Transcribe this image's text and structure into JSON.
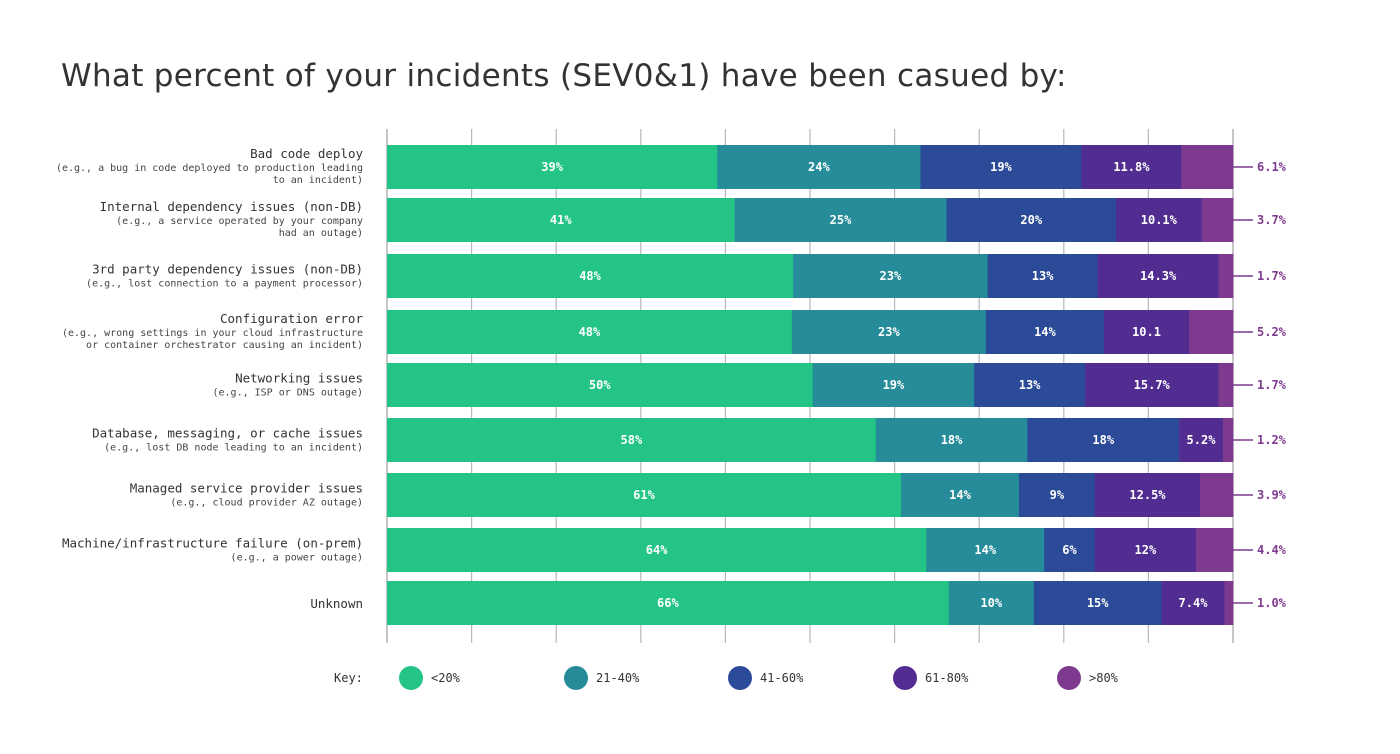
{
  "chart_data": {
    "type": "bar",
    "orientation": "horizontal",
    "stacked": true,
    "normalized": true,
    "title": "What percent of your incidents (SEV0&1) have been casued by:",
    "xlabel": "",
    "ylabel": "",
    "xlim": [
      0,
      100
    ],
    "grid": true,
    "legend": {
      "title": "Key:",
      "placement": "bottom",
      "entries": [
        {
          "label": "<20%",
          "color": "#23C485"
        },
        {
          "label": "21-40%",
          "color": "#268C9A"
        },
        {
          "label": "41-60%",
          "color": "#2B4A97"
        },
        {
          "label": "61-80%",
          "color": "#522D91"
        },
        {
          "label": ">80%",
          "color": "#7E3A8F"
        }
      ]
    },
    "categories": [
      {
        "name": "Bad code deploy",
        "sub": [
          "(e.g., a bug in code deployed to production leading",
          "to an incident)"
        ]
      },
      {
        "name": "Internal dependency issues (non-DB)",
        "sub": [
          "(e.g., a service operated by your company",
          "had an outage)"
        ]
      },
      {
        "name": "3rd party dependency issues  (non-DB)",
        "sub": [
          "(e.g., lost connection to a payment processor)"
        ]
      },
      {
        "name": "Configuration error",
        "sub": [
          "(e.g., wrong settings in your cloud infrastructure",
          "or container orchestrator causing an incident)"
        ]
      },
      {
        "name": "Networking issues",
        "sub": [
          "(e.g., ISP or DNS outage)"
        ]
      },
      {
        "name": "Database, messaging, or cache issues",
        "sub": [
          "(e.g., lost DB node leading to an incident)"
        ]
      },
      {
        "name": "Managed service provider issues",
        "sub": [
          "(e.g., cloud provider AZ outage)"
        ]
      },
      {
        "name": "Machine/infrastructure failure (on-prem)",
        "sub": [
          "(e.g., a power outage)"
        ]
      },
      {
        "name": "Unknown",
        "sub": []
      }
    ],
    "series": [
      {
        "name": "<20%",
        "color": "#23C485",
        "values": [
          39,
          41,
          48,
          48,
          50,
          58,
          61,
          64,
          66
        ],
        "labels": [
          "39%",
          "41%",
          "48%",
          "48%",
          "50%",
          "58%",
          "61%",
          "64%",
          "66%"
        ]
      },
      {
        "name": "21-40%",
        "color": "#268C9A",
        "values": [
          24,
          25,
          23,
          23,
          19,
          18,
          14,
          14,
          10
        ],
        "labels": [
          "24%",
          "25%",
          "23%",
          "23%",
          "19%",
          "18%",
          "14%",
          "14%",
          "10%"
        ]
      },
      {
        "name": "41-60%",
        "color": "#2B4A97",
        "values": [
          19,
          20,
          13,
          14,
          13,
          18,
          9,
          6,
          15
        ],
        "labels": [
          "19%",
          "20%",
          "13%",
          "14%",
          "13%",
          "18%",
          "9%",
          "6%",
          "15%"
        ]
      },
      {
        "name": "61-80%",
        "color": "#522D91",
        "values": [
          11.8,
          10.1,
          14.3,
          10.1,
          15.7,
          5.2,
          12.5,
          12,
          7.4
        ],
        "labels": [
          "11.8%",
          "10.1%",
          "14.3%",
          "10.1",
          "15.7%",
          "5.2%",
          "12.5%",
          "12%",
          "7.4%"
        ]
      },
      {
        "name": ">80%",
        "color": "#7E3A8F",
        "values": [
          6.1,
          3.7,
          1.7,
          5.2,
          1.7,
          1.2,
          3.9,
          4.4,
          1.0
        ],
        "labels": [
          "6.1%",
          "3.7%",
          "1.7%",
          "5.2%",
          "1.7%",
          "1.2%",
          "3.9%",
          "4.4%",
          "1.0%"
        ],
        "label_outside": true
      }
    ]
  }
}
